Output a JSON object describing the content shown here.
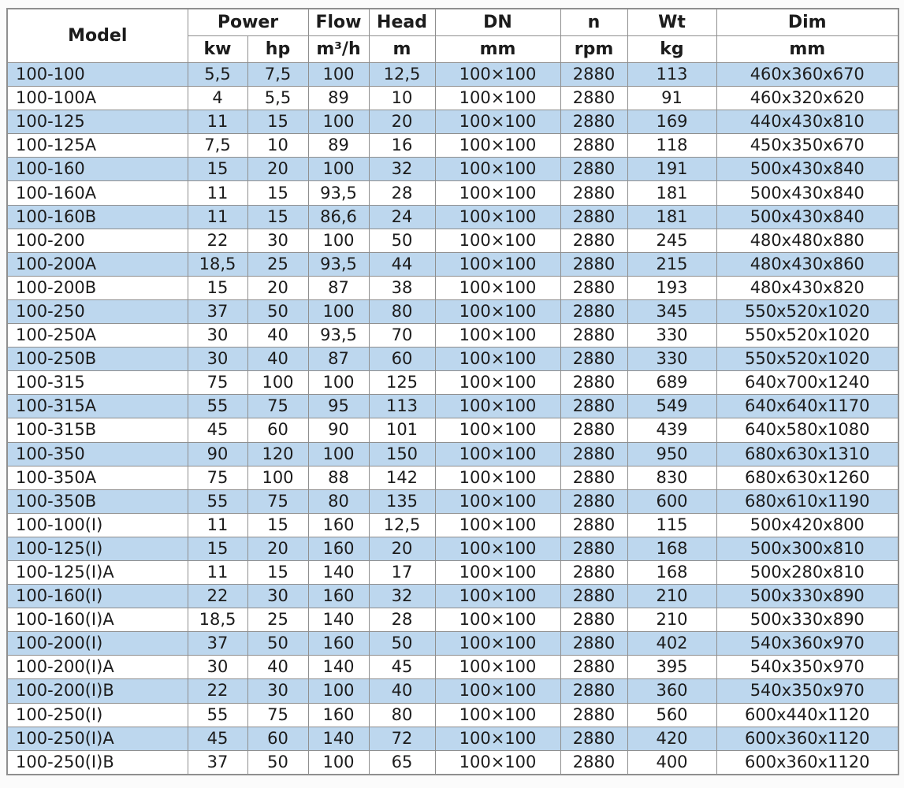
{
  "colors": {
    "row_stripe": "#bdd7ee",
    "border": "#8f8f8f",
    "text": "#1c1c1c",
    "header_bg": "#ffffff",
    "page_bg": "#fbfbfb"
  },
  "table": {
    "header": {
      "model": "Model",
      "power": "Power",
      "flow": "Flow",
      "head": "Head",
      "dn": "DN",
      "n": "n",
      "wt": "Wt",
      "dim": "Dim"
    },
    "units": {
      "kw": "kw",
      "hp": "hp",
      "flow": "m³/h",
      "head": "m",
      "dn": "mm",
      "n": "rpm",
      "wt": "kg",
      "dim": "mm"
    },
    "rows": [
      {
        "model": "100-100",
        "kw": "5,5",
        "hp": "7,5",
        "flow": "100",
        "head": "12,5",
        "dn": "100×100",
        "rpm": "2880",
        "wt": "113",
        "dim": "460x360x670"
      },
      {
        "model": "100-100A",
        "kw": "4",
        "hp": "5,5",
        "flow": "89",
        "head": "10",
        "dn": "100×100",
        "rpm": "2880",
        "wt": "91",
        "dim": "460x320x620"
      },
      {
        "model": "100-125",
        "kw": "11",
        "hp": "15",
        "flow": "100",
        "head": "20",
        "dn": "100×100",
        "rpm": "2880",
        "wt": "169",
        "dim": "440x430x810"
      },
      {
        "model": "100-125A",
        "kw": "7,5",
        "hp": "10",
        "flow": "89",
        "head": "16",
        "dn": "100×100",
        "rpm": "2880",
        "wt": "118",
        "dim": "450x350x670"
      },
      {
        "model": "100-160",
        "kw": "15",
        "hp": "20",
        "flow": "100",
        "head": "32",
        "dn": "100×100",
        "rpm": "2880",
        "wt": "191",
        "dim": "500x430x840"
      },
      {
        "model": "100-160A",
        "kw": "11",
        "hp": "15",
        "flow": "93,5",
        "head": "28",
        "dn": "100×100",
        "rpm": "2880",
        "wt": "181",
        "dim": "500x430x840"
      },
      {
        "model": "100-160B",
        "kw": "11",
        "hp": "15",
        "flow": "86,6",
        "head": "24",
        "dn": "100×100",
        "rpm": "2880",
        "wt": "181",
        "dim": "500x430x840"
      },
      {
        "model": "100-200",
        "kw": "22",
        "hp": "30",
        "flow": "100",
        "head": "50",
        "dn": "100×100",
        "rpm": "2880",
        "wt": "245",
        "dim": "480x480x880"
      },
      {
        "model": "100-200A",
        "kw": "18,5",
        "hp": "25",
        "flow": "93,5",
        "head": "44",
        "dn": "100×100",
        "rpm": "2880",
        "wt": "215",
        "dim": "480x430x860"
      },
      {
        "model": "100-200B",
        "kw": "15",
        "hp": "20",
        "flow": "87",
        "head": "38",
        "dn": "100×100",
        "rpm": "2880",
        "wt": "193",
        "dim": "480x430x820"
      },
      {
        "model": "100-250",
        "kw": "37",
        "hp": "50",
        "flow": "100",
        "head": "80",
        "dn": "100×100",
        "rpm": "2880",
        "wt": "345",
        "dim": "550x520x1020"
      },
      {
        "model": "100-250A",
        "kw": "30",
        "hp": "40",
        "flow": "93,5",
        "head": "70",
        "dn": "100×100",
        "rpm": "2880",
        "wt": "330",
        "dim": "550x520x1020"
      },
      {
        "model": "100-250B",
        "kw": "30",
        "hp": "40",
        "flow": "87",
        "head": "60",
        "dn": "100×100",
        "rpm": "2880",
        "wt": "330",
        "dim": "550x520x1020"
      },
      {
        "model": "100-315",
        "kw": "75",
        "hp": "100",
        "flow": "100",
        "head": "125",
        "dn": "100×100",
        "rpm": "2880",
        "wt": "689",
        "dim": "640x700x1240"
      },
      {
        "model": "100-315A",
        "kw": "55",
        "hp": "75",
        "flow": "95",
        "head": "113",
        "dn": "100×100",
        "rpm": "2880",
        "wt": "549",
        "dim": "640x640x1170"
      },
      {
        "model": "100-315B",
        "kw": "45",
        "hp": "60",
        "flow": "90",
        "head": "101",
        "dn": "100×100",
        "rpm": "2880",
        "wt": "439",
        "dim": "640x580x1080"
      },
      {
        "model": "100-350",
        "kw": "90",
        "hp": "120",
        "flow": "100",
        "head": "150",
        "dn": "100×100",
        "rpm": "2880",
        "wt": "950",
        "dim": "680x630x1310"
      },
      {
        "model": "100-350A",
        "kw": "75",
        "hp": "100",
        "flow": "88",
        "head": "142",
        "dn": "100×100",
        "rpm": "2880",
        "wt": "830",
        "dim": "680x630x1260"
      },
      {
        "model": "100-350B",
        "kw": "55",
        "hp": "75",
        "flow": "80",
        "head": "135",
        "dn": "100×100",
        "rpm": "2880",
        "wt": "600",
        "dim": "680x610x1190"
      },
      {
        "model": "100-100(I)",
        "kw": "11",
        "hp": "15",
        "flow": "160",
        "head": "12,5",
        "dn": "100×100",
        "rpm": "2880",
        "wt": "115",
        "dim": "500x420x800"
      },
      {
        "model": "100-125(I)",
        "kw": "15",
        "hp": "20",
        "flow": "160",
        "head": "20",
        "dn": "100×100",
        "rpm": "2880",
        "wt": "168",
        "dim": "500x300x810"
      },
      {
        "model": "100-125(I)A",
        "kw": "11",
        "hp": "15",
        "flow": "140",
        "head": "17",
        "dn": "100×100",
        "rpm": "2880",
        "wt": "168",
        "dim": "500x280x810"
      },
      {
        "model": "100-160(I)",
        "kw": "22",
        "hp": "30",
        "flow": "160",
        "head": "32",
        "dn": "100×100",
        "rpm": "2880",
        "wt": "210",
        "dim": "500x330x890"
      },
      {
        "model": "100-160(I)A",
        "kw": "18,5",
        "hp": "25",
        "flow": "140",
        "head": "28",
        "dn": "100×100",
        "rpm": "2880",
        "wt": "210",
        "dim": "500x330x890"
      },
      {
        "model": "100-200(I)",
        "kw": "37",
        "hp": "50",
        "flow": "160",
        "head": "50",
        "dn": "100×100",
        "rpm": "2880",
        "wt": "402",
        "dim": "540x360x970"
      },
      {
        "model": "100-200(I)A",
        "kw": "30",
        "hp": "40",
        "flow": "140",
        "head": "45",
        "dn": "100×100",
        "rpm": "2880",
        "wt": "395",
        "dim": "540x350x970"
      },
      {
        "model": "100-200(I)B",
        "kw": "22",
        "hp": "30",
        "flow": "100",
        "head": "40",
        "dn": "100×100",
        "rpm": "2880",
        "wt": "360",
        "dim": "540x350x970"
      },
      {
        "model": "100-250(I)",
        "kw": "55",
        "hp": "75",
        "flow": "160",
        "head": "80",
        "dn": "100×100",
        "rpm": "2880",
        "wt": "560",
        "dim": "600x440x1120"
      },
      {
        "model": "100-250(I)A",
        "kw": "45",
        "hp": "60",
        "flow": "140",
        "head": "72",
        "dn": "100×100",
        "rpm": "2880",
        "wt": "420",
        "dim": "600x360x1120"
      },
      {
        "model": "100-250(I)B",
        "kw": "37",
        "hp": "50",
        "flow": "100",
        "head": "65",
        "dn": "100×100",
        "rpm": "2880",
        "wt": "400",
        "dim": "600x360x1120"
      }
    ]
  }
}
